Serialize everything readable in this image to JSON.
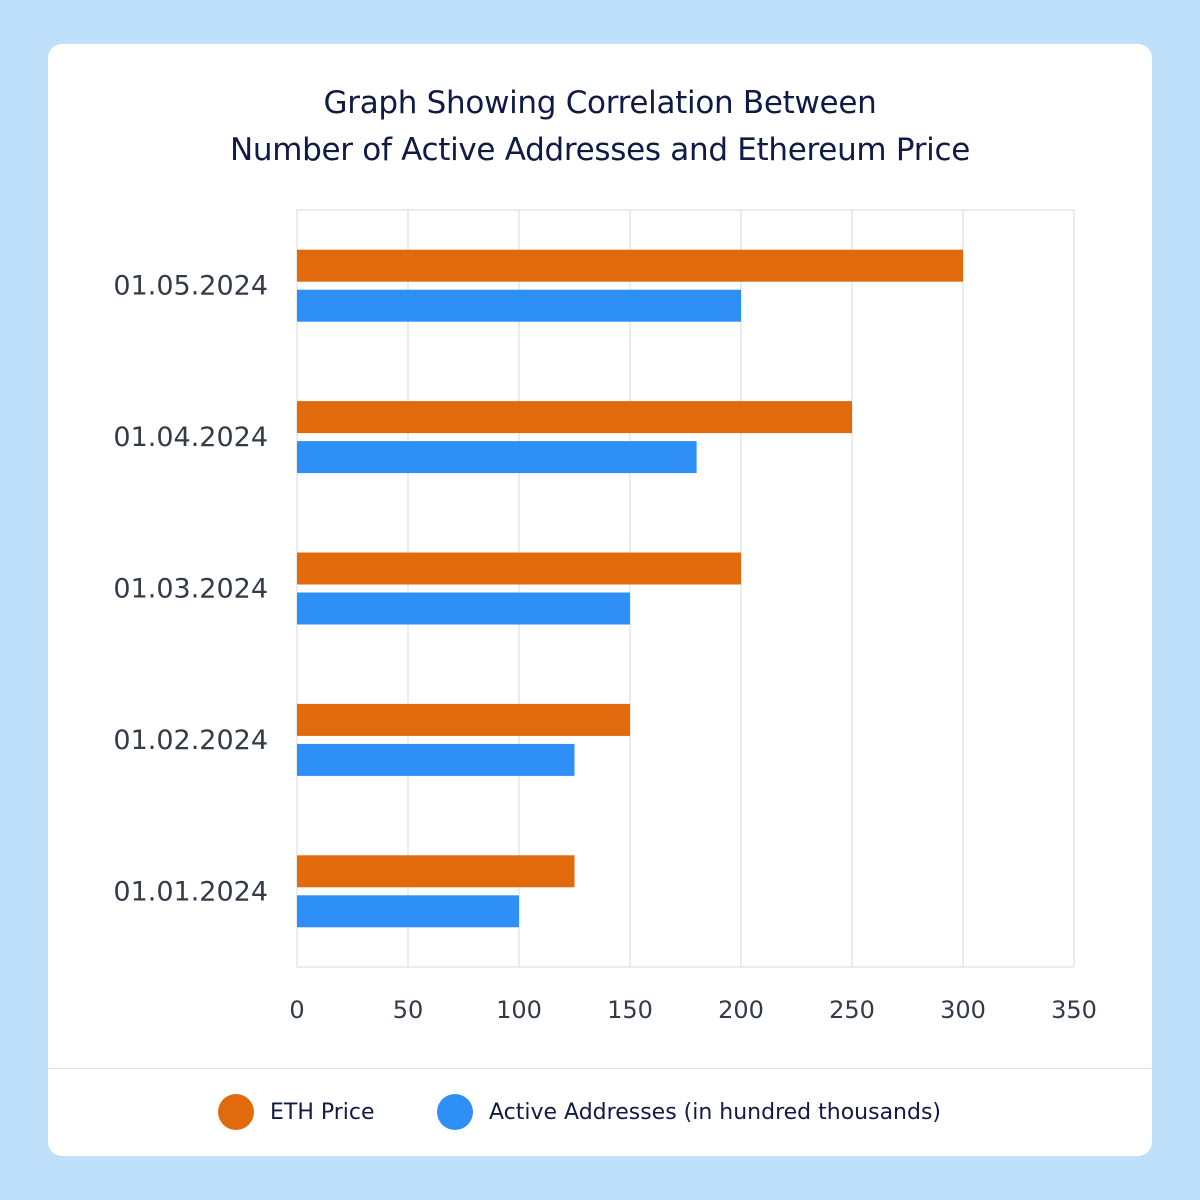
{
  "title": {
    "line1": "Graph Showing Correlation Between",
    "line2": "Number of Active Addresses and Ethereum Price"
  },
  "legend": {
    "items": [
      {
        "label": "ETH Price",
        "color": "#e06a0c"
      },
      {
        "label": "Active Addresses (in hundred thousands)",
        "color": "#2e8ff6"
      }
    ]
  },
  "chart_data": {
    "type": "bar",
    "orientation": "horizontal",
    "categories": [
      "01.01.2024",
      "01.02.2024",
      "01.03.2024",
      "01.04.2024",
      "01.05.2024"
    ],
    "series": [
      {
        "name": "ETH Price",
        "color": "#e06a0c",
        "values": [
          125,
          150,
          200,
          250,
          300
        ]
      },
      {
        "name": "Active Addresses (in hundred thousands)",
        "color": "#2e8ff6",
        "values": [
          100,
          125,
          150,
          180,
          200
        ]
      }
    ],
    "xlim": [
      0,
      350
    ],
    "xticks": [
      "0",
      "50",
      "100",
      "150",
      "200",
      "250",
      "300",
      "350"
    ],
    "grid": true,
    "legend_position": "bottom"
  }
}
